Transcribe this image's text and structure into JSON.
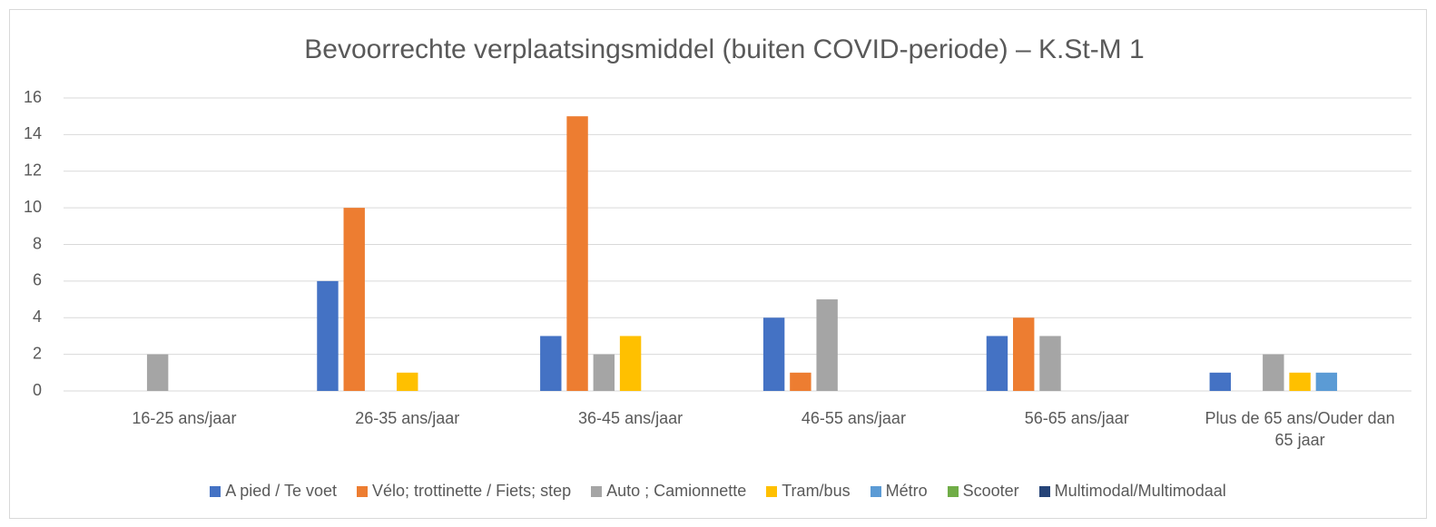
{
  "chart_data": {
    "type": "bar",
    "title": "Bevoorrechte verplaatsingsmiddel (buiten COVID-periode) – K.St-M 1",
    "categories": [
      "16-25 ans/jaar",
      "26-35 ans/jaar",
      "36-45 ans/jaar",
      "46-55 ans/jaar",
      "56-65 ans/jaar",
      "Plus de 65 ans/Ouder dan 65 jaar"
    ],
    "series": [
      {
        "name": "A pied / Te voet",
        "color": "#4472c4",
        "values": [
          0,
          6,
          3,
          4,
          3,
          1
        ]
      },
      {
        "name": "Vélo; trottinette / Fiets; step",
        "color": "#ed7d31",
        "values": [
          0,
          10,
          15,
          1,
          4,
          0
        ]
      },
      {
        "name": "Auto ; Camionnette",
        "color": "#a5a5a5",
        "values": [
          2,
          0,
          2,
          5,
          3,
          2
        ]
      },
      {
        "name": "Tram/bus",
        "color": "#ffc000",
        "values": [
          0,
          1,
          3,
          0,
          0,
          1
        ]
      },
      {
        "name": "Métro",
        "color": "#5b9bd5",
        "values": [
          0,
          0,
          0,
          0,
          0,
          1
        ]
      },
      {
        "name": "Scooter",
        "color": "#70ad47",
        "values": [
          0,
          0,
          0,
          0,
          0,
          0
        ]
      },
      {
        "name": "Multimodal/Multimodaal",
        "color": "#264478",
        "values": [
          0,
          0,
          0,
          0,
          0,
          0
        ]
      }
    ],
    "ylim": [
      0,
      16
    ],
    "yticks": [
      0,
      2,
      4,
      6,
      8,
      10,
      12,
      14,
      16
    ],
    "grid": true,
    "legend": "bottom"
  }
}
